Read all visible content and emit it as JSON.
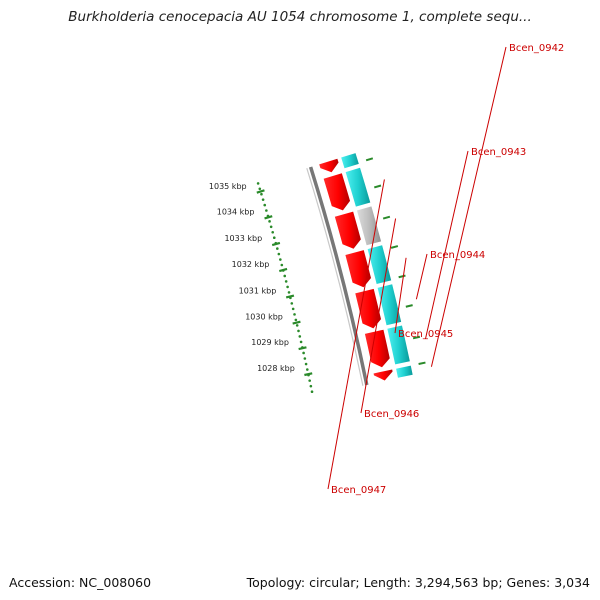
{
  "title": "Burkholderia cenocepacia AU 1054 chromosome 1, complete sequ...",
  "footer": {
    "accession_label": "Accession:",
    "accession": "NC_008060",
    "topology_text": "Topology: circular; Length: 3,294,563 bp; Genes: 3,034"
  },
  "ruler": {
    "unit": "kbp",
    "ticks": [
      1028,
      1029,
      1030,
      1031,
      1032,
      1033,
      1034,
      1035
    ]
  },
  "genes": [
    {
      "name": "Bcen_0942",
      "strand_color": "cyan"
    },
    {
      "name": "Bcen_0943",
      "strand_color": "cyan"
    },
    {
      "name": "Bcen_0944",
      "strand_color": "cyan"
    },
    {
      "name": "Bcen_0945",
      "strand_color": "cyan"
    },
    {
      "name": "Bcen_0946",
      "strand_color": "gray"
    },
    {
      "name": "Bcen_0947",
      "strand_color": "cyan"
    }
  ],
  "colors": {
    "forward_feature": "#ff1a1a",
    "reverse_feature_cyan": "#1fd0d0",
    "reverse_feature_gray": "#bdbdbd",
    "backbone": "#7a7a7a",
    "tick": "#2a8a2a",
    "gene_label": "#cc0000"
  }
}
